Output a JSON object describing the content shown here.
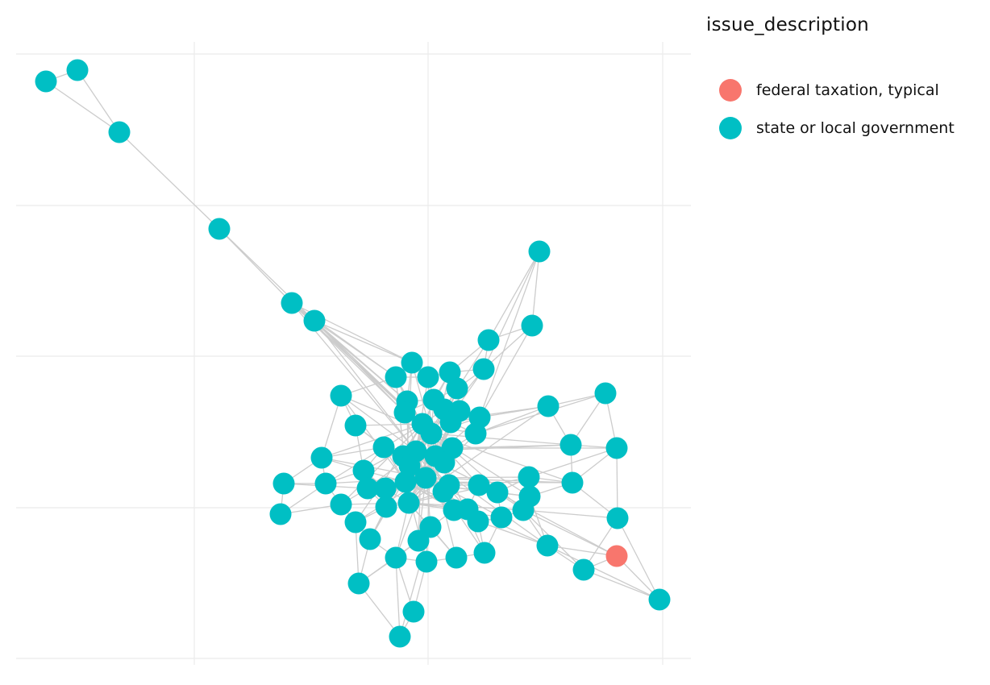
{
  "legend": {
    "title": "issue_description",
    "items": [
      {
        "label": "federal taxation, typical",
        "color": "#F8766D"
      },
      {
        "label": "state or local government",
        "color": "#00BFC4"
      }
    ]
  },
  "chart_data": {
    "type": "scatter",
    "description_kind": "network graph (force-directed layout), axes unlabeled",
    "grid": true,
    "node_count": 83,
    "categories": [
      "federal taxation, typical",
      "state or local government"
    ],
    "category_counts": {
      "federal taxation, typical": 1,
      "state or local government": 82
    },
    "colors": {
      "federal taxation, typical": "#F8766D",
      "state or local government": "#00BFC4",
      "edge": "#cccccc",
      "grid": "#ebebeb"
    }
  }
}
